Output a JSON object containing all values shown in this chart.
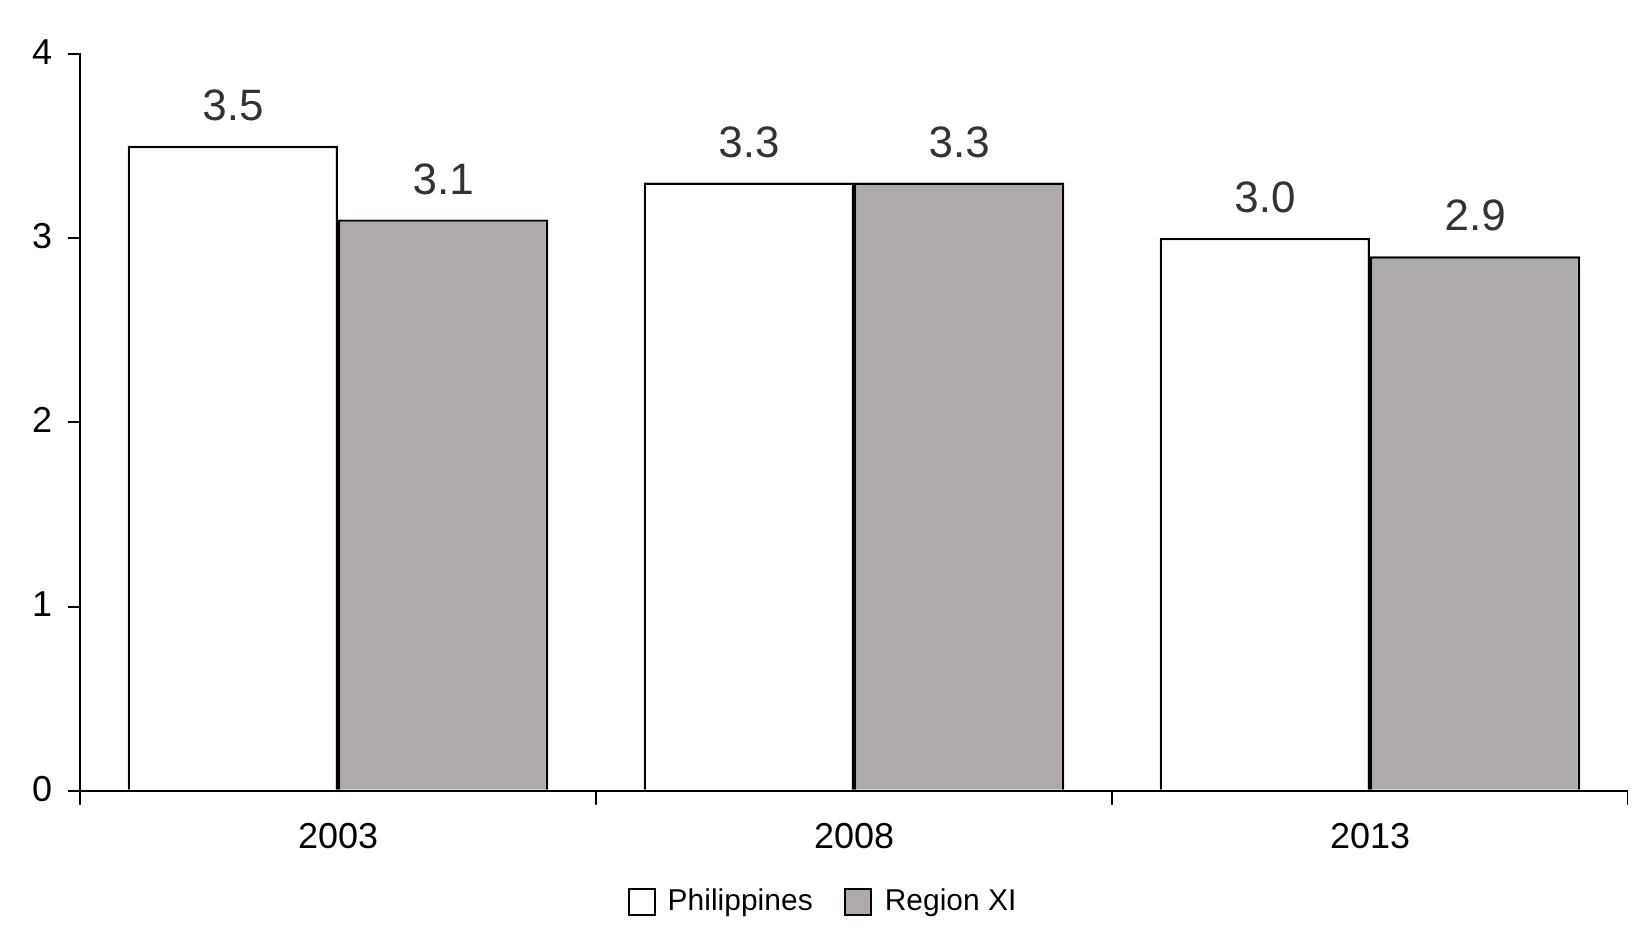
{
  "chart_data": {
    "type": "bar",
    "categories": [
      "2003",
      "2008",
      "2013"
    ],
    "series": [
      {
        "name": "Philippines",
        "color": "#ffffff",
        "values": [
          3.5,
          3.3,
          3.0
        ],
        "value_labels": [
          "3.5",
          "3.3",
          "3.0"
        ]
      },
      {
        "name": "Region XI",
        "color": "#aeaaaa",
        "values": [
          3.1,
          3.3,
          2.9
        ],
        "value_labels": [
          "3.1",
          "3.3",
          "2.9"
        ]
      }
    ],
    "ylim": [
      0,
      4
    ],
    "yticks": [
      0,
      1,
      2,
      3,
      4
    ],
    "grid": false,
    "legend": "bottom"
  }
}
